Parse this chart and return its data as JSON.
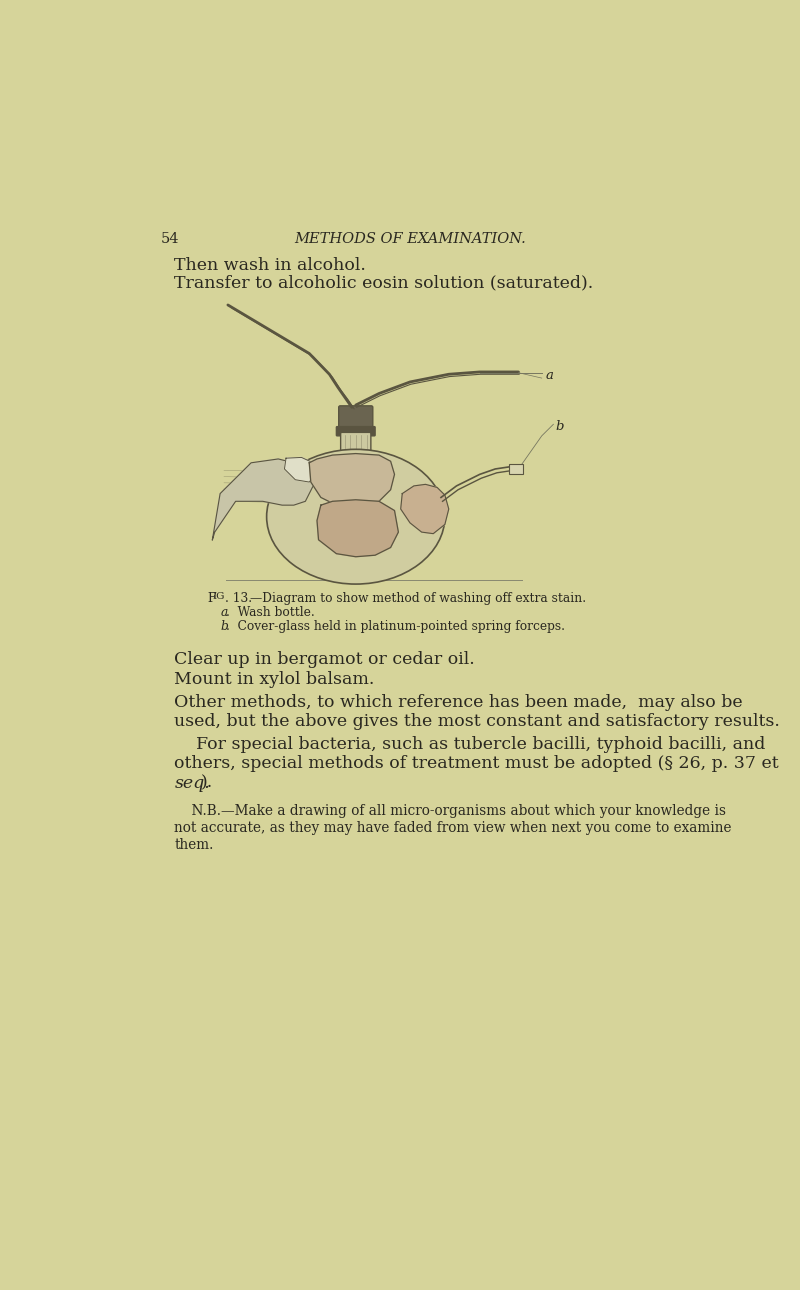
{
  "background_color": "#d6d49a",
  "text_color": "#2a2820",
  "sketch_color": "#4a4835",
  "page_number": "54",
  "header": "METHODS OF EXAMINATION.",
  "line1": "Then wash in alcohol.",
  "line2": "Transfer to alcoholic eosin solution (saturated).",
  "fig_caption_main": "Fig. 13.",
  "fig_caption_rest": "—Diagram to show method of washing off extra stain.",
  "fig_caption_a": "a.",
  "fig_caption_a_text": "  Wash bottle.",
  "fig_caption_b": "b.",
  "fig_caption_b_text": "  Cover-glass held in platinum-pointed spring forceps.",
  "body_line1": "Clear up in bergamot or cedar oil.",
  "body_line2": "Mount in xylol balsam.",
  "body_para2_l1": "Other methods, to which reference has been made,  may also be",
  "body_para2_l2": "used, but the above gives the most constant and satisfactory results.",
  "body_para3_l1": "    For special bacteria, such as tubercle bacilli, typhoid bacilli, and",
  "body_para3_l2": "others, special methods of treatment must be adopted (§ 26, p. 37 et",
  "body_para3_l3": "seq.).",
  "nb_l1": "    N.B.—Make a drawing of all micro-organisms about which your knowledge is",
  "nb_l2": "not accurate, as they may have faded from view when next you come to examine",
  "nb_l3": "them."
}
